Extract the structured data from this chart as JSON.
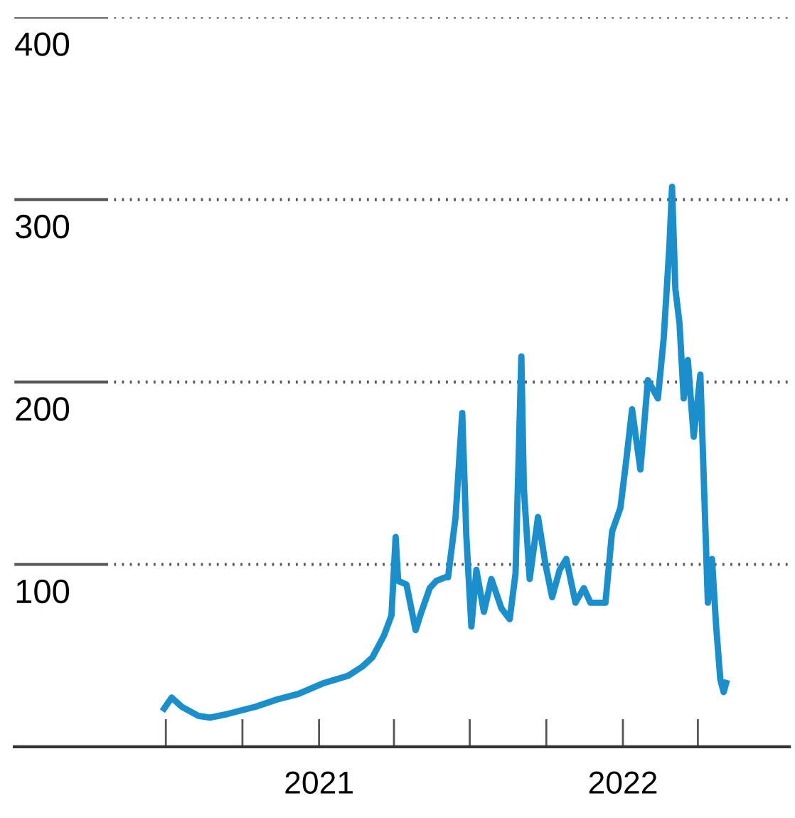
{
  "chart_data": {
    "type": "line",
    "x": [
      "2020-06-29",
      "2020-07-08",
      "2020-07-20",
      "2020-08-09",
      "2020-08-23",
      "2020-09-13",
      "2020-10-17",
      "2020-11-12",
      "2020-12-07",
      "2021-01-07",
      "2021-02-05",
      "2021-02-22",
      "2021-03-06",
      "2021-03-20",
      "2021-03-29",
      "2021-04-03",
      "2021-04-06",
      "2021-04-16",
      "2021-04-27",
      "2021-05-04",
      "2021-05-14",
      "2021-05-22",
      "2021-06-02",
      "2021-06-05",
      "2021-06-14",
      "2021-06-22",
      "2021-06-27",
      "2021-07-03",
      "2021-07-09",
      "2021-07-18",
      "2021-07-27",
      "2021-08-08",
      "2021-08-18",
      "2021-08-25",
      "2021-09-01",
      "2021-09-04",
      "2021-09-11",
      "2021-09-21",
      "2021-09-30",
      "2021-10-08",
      "2021-10-17",
      "2021-10-25",
      "2021-11-05",
      "2021-11-15",
      "2021-11-23",
      "2021-12-11",
      "2021-12-19",
      "2021-12-29",
      "2022-01-05",
      "2022-01-12",
      "2022-01-22",
      "2022-01-31",
      "2022-02-12",
      "2022-02-19",
      "2022-02-26",
      "2022-03-01",
      "2022-03-05",
      "2022-03-10",
      "2022-03-15",
      "2022-03-20",
      "2022-03-27",
      "2022-04-04",
      "2022-04-13",
      "2022-04-18",
      "2022-04-23",
      "2022-04-28",
      "2022-05-02",
      "2022-05-05"
    ],
    "series": [
      {
        "color": "#1a8fcc",
        "values": [
          21,
          27,
          22,
          17,
          16,
          18,
          22,
          26,
          29,
          35,
          39,
          44,
          49,
          61,
          72,
          115,
          91,
          89,
          64,
          74,
          87,
          91,
          93,
          93,
          126,
          183,
          115,
          66,
          97,
          74,
          92,
          76,
          70,
          95,
          214,
          142,
          92,
          126,
          100,
          82,
          97,
          103,
          79,
          87,
          79,
          79,
          118,
          131,
          157,
          185,
          152,
          201,
          191,
          224,
          276,
          307,
          251,
          232,
          191,
          212,
          170,
          204,
          79,
          103,
          66,
          37,
          30,
          35
        ]
      }
    ],
    "xlim": [
      "2020-01-01",
      "2022-07-20"
    ],
    "xticks": [
      {
        "value": "2021-01-01",
        "label": "2021"
      },
      {
        "value": "2022-01-01",
        "label": "2022"
      }
    ],
    "ylim": [
      0,
      400
    ],
    "yticks": [
      100,
      200,
      300,
      400
    ],
    "grid": "y",
    "marker": "none",
    "line_style": "solid"
  }
}
